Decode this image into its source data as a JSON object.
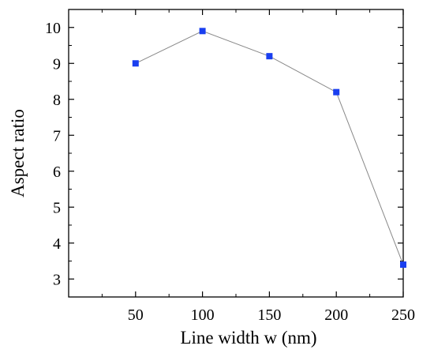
{
  "chart_data": {
    "type": "line",
    "title": "",
    "xlabel": "Line width w (nm)",
    "ylabel": "Aspect ratio",
    "x": [
      50,
      100,
      150,
      200,
      250
    ],
    "series": [
      {
        "values": [
          9.0,
          9.9,
          9.2,
          8.2,
          3.4
        ]
      }
    ],
    "xlim": [
      0,
      250
    ],
    "ylim": [
      2.5,
      10.5
    ],
    "xticks": [
      50,
      100,
      150,
      200,
      250
    ],
    "xtick_labels": [
      "50",
      "100",
      "150",
      "200",
      "250"
    ],
    "yticks": [
      3,
      4,
      5,
      6,
      7,
      8,
      9,
      10
    ],
    "ytick_labels": [
      "3",
      "4",
      "5",
      "6",
      "7",
      "8",
      "9",
      "10"
    ],
    "grid": false,
    "legend": "none",
    "marker": "square",
    "colors": {
      "marker": "#1a3ff0",
      "line": "#888888",
      "axis": "#000000"
    }
  }
}
